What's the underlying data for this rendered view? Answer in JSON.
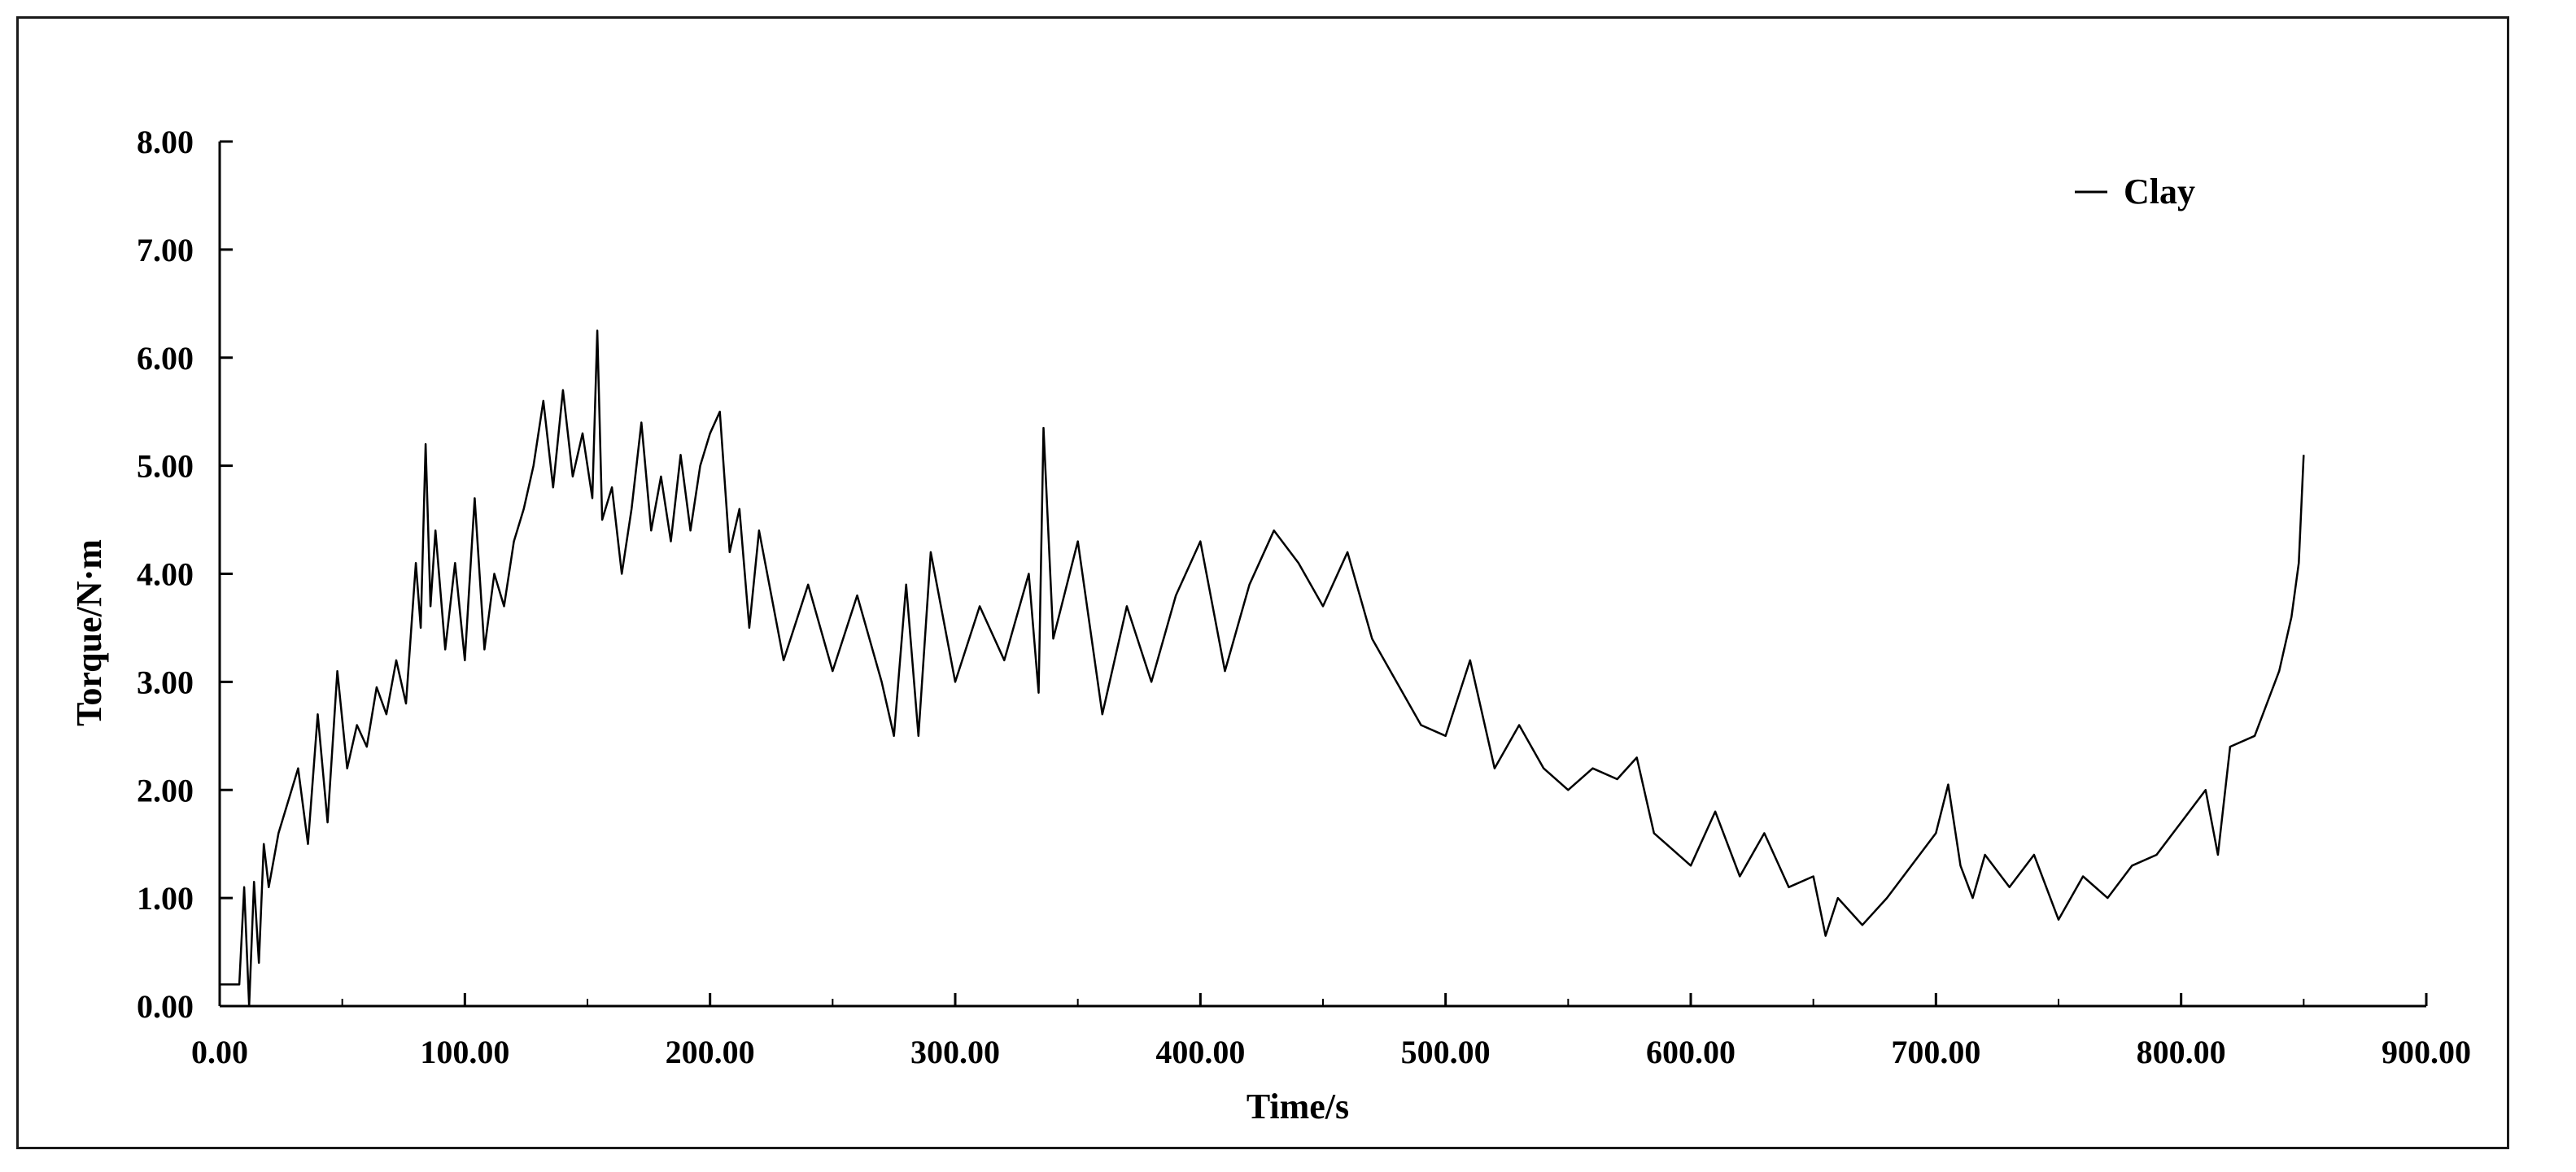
{
  "chart_data": {
    "type": "line",
    "title": "",
    "xlabel": "Time/s",
    "ylabel": "Torque/N·m",
    "xlim": [
      0,
      900
    ],
    "ylim": [
      0,
      8
    ],
    "x_ticks": [
      "0.00",
      "100.00",
      "200.00",
      "300.00",
      "400.00",
      "500.00",
      "600.00",
      "700.00",
      "800.00",
      "900.00"
    ],
    "y_ticks": [
      "0.00",
      "1.00",
      "2.00",
      "3.00",
      "4.00",
      "5.00",
      "6.00",
      "7.00",
      "8.00"
    ],
    "legend": {
      "position": "top-right",
      "entries": [
        "Clay"
      ]
    },
    "grid": false,
    "line_color": "#000000",
    "series": [
      {
        "name": "Clay",
        "x": [
          0,
          8,
          10,
          12,
          14,
          16,
          18,
          20,
          24,
          28,
          32,
          36,
          40,
          44,
          48,
          52,
          56,
          60,
          64,
          68,
          72,
          76,
          80,
          82,
          84,
          86,
          88,
          92,
          96,
          100,
          104,
          108,
          112,
          116,
          120,
          124,
          128,
          132,
          136,
          140,
          144,
          148,
          152,
          154,
          156,
          160,
          164,
          168,
          172,
          176,
          180,
          184,
          188,
          192,
          196,
          200,
          204,
          208,
          212,
          216,
          220,
          230,
          240,
          250,
          260,
          270,
          275,
          280,
          285,
          290,
          300,
          310,
          320,
          330,
          334,
          336,
          340,
          350,
          360,
          370,
          380,
          390,
          400,
          410,
          420,
          430,
          440,
          450,
          460,
          470,
          480,
          490,
          500,
          510,
          520,
          530,
          540,
          550,
          560,
          570,
          578,
          585,
          590,
          600,
          610,
          620,
          630,
          640,
          650,
          655,
          660,
          670,
          680,
          690,
          700,
          705,
          710,
          715,
          720,
          730,
          740,
          750,
          760,
          770,
          780,
          790,
          800,
          810,
          815,
          820,
          830,
          840,
          845,
          848,
          850
        ],
        "values": [
          0.2,
          0.2,
          1.1,
          0,
          1.15,
          0.4,
          1.5,
          1.1,
          1.6,
          1.9,
          2.2,
          1.5,
          2.7,
          1.7,
          3.1,
          2.2,
          2.6,
          2.4,
          2.95,
          2.7,
          3.2,
          2.8,
          4.1,
          3.5,
          5.2,
          3.7,
          4.4,
          3.3,
          4.1,
          3.2,
          4.7,
          3.3,
          4.0,
          3.7,
          4.3,
          4.6,
          5.0,
          5.6,
          4.8,
          5.7,
          4.9,
          5.3,
          4.7,
          6.25,
          4.5,
          4.8,
          4.0,
          4.6,
          5.4,
          4.4,
          4.9,
          4.3,
          5.1,
          4.4,
          5.0,
          5.3,
          5.5,
          4.2,
          4.6,
          3.5,
          4.4,
          3.2,
          3.9,
          3.1,
          3.8,
          3.0,
          2.5,
          3.9,
          2.5,
          4.2,
          3.0,
          3.7,
          3.2,
          4.0,
          2.9,
          5.35,
          3.4,
          4.3,
          2.7,
          3.7,
          3.0,
          3.8,
          4.3,
          3.1,
          3.9,
          4.4,
          4.1,
          3.7,
          4.2,
          3.4,
          3.0,
          2.6,
          2.5,
          3.2,
          2.2,
          2.6,
          2.2,
          2.0,
          2.2,
          2.1,
          2.3,
          1.6,
          1.5,
          1.3,
          1.8,
          1.2,
          1.6,
          1.1,
          1.2,
          0.65,
          1.0,
          0.75,
          1.0,
          1.3,
          1.6,
          2.05,
          1.3,
          1.0,
          1.4,
          1.1,
          1.4,
          0.8,
          1.2,
          1.0,
          1.3,
          1.4,
          1.7,
          2.0,
          1.4,
          2.4,
          2.5,
          3.1,
          3.6,
          4.1,
          5.1
        ]
      }
    ]
  }
}
